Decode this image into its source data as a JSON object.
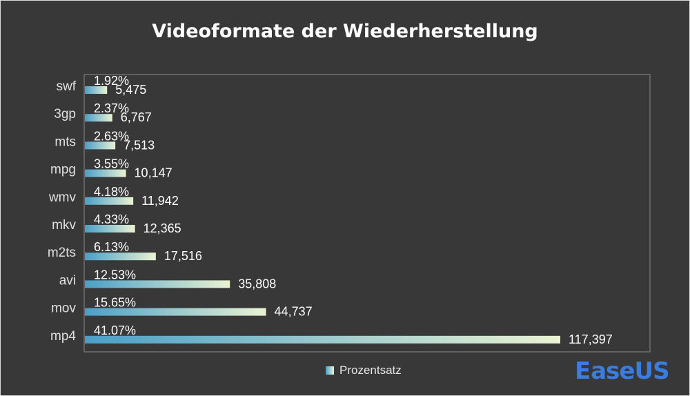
{
  "chart_data": {
    "type": "bar",
    "orientation": "horizontal",
    "title": "Videoformate der Wiederherstellung",
    "categories": [
      "swf",
      "3gp",
      "mts",
      "mpg",
      "wmv",
      "mkv",
      "m2ts",
      "avi",
      "mov",
      "mp4"
    ],
    "series": [
      {
        "name": "Prozentsatz",
        "values": [
          1.92,
          2.37,
          2.63,
          3.55,
          4.18,
          4.33,
          6.13,
          12.53,
          15.65,
          41.07
        ],
        "percent_labels": [
          "1.92%",
          "2.37%",
          "2.63%",
          "3.55%",
          "4.18%",
          "4.33%",
          "6.13%",
          "12.53%",
          "15.65%",
          "41.07%"
        ],
        "count_labels": [
          "5,475",
          "6,767",
          "7,513",
          "10,147",
          "11,942",
          "12,365",
          "17,516",
          "35,808",
          "44,737",
          "117,397"
        ]
      }
    ],
    "legend_position": "bottom",
    "grid": false,
    "bar_gradient": [
      "#4a9fc8",
      "#eaf3d2"
    ]
  },
  "legend": {
    "label": "Prozentsatz"
  },
  "logo": {
    "mark": "E",
    "text": "aseUS"
  },
  "colors": {
    "background": "#383838",
    "title": "#ffffff",
    "logo": "#3a7de0"
  }
}
